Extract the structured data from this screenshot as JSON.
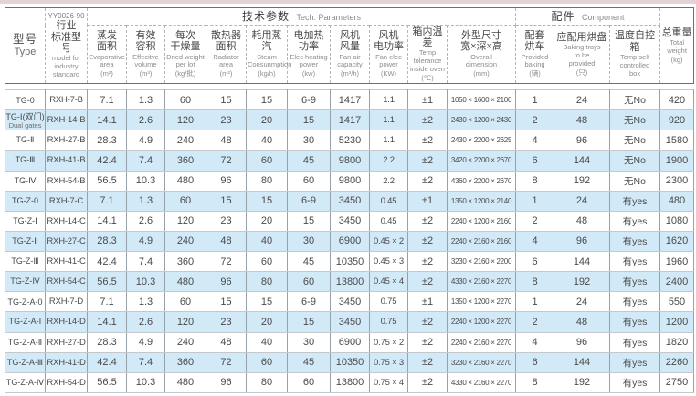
{
  "header": {
    "tech_params": {
      "zh": "技术参数",
      "en": "Tech. Parameters"
    },
    "component": {
      "zh": "配件",
      "en": "Component"
    }
  },
  "columns": [
    {
      "zh": "型号",
      "en": "Type"
    },
    {
      "std": "YY0026-90",
      "zh": "行业\n标准型号",
      "en": "model for\nindustry\nstandard"
    },
    {
      "zh": "蒸发\n面积",
      "en": "Evaporative\narea",
      "unit": "(m²)"
    },
    {
      "zh": "有效\n容积",
      "en": "Effecitve\nvolume",
      "unit": "(m³)"
    },
    {
      "zh": "每次\n干燥量",
      "en": "Dried weight\nper lot",
      "unit": "(kg/批)"
    },
    {
      "zh": "散热器\n面积",
      "en": "Radiator\narea",
      "unit": "(m²)"
    },
    {
      "zh": "耗用蒸汽",
      "en": "Steam\nConsunmption",
      "unit": "(kg/h)"
    },
    {
      "zh": "电加热\n功率",
      "en": "Elec heating\npower",
      "unit": "(kw)"
    },
    {
      "zh": "风机\n风量",
      "en": "Fan air\ncapacity",
      "unit": "(m³/h)"
    },
    {
      "zh": "风机\n电功率",
      "en": "Fan elec\npower",
      "unit": "(KW)"
    },
    {
      "zh": "箱内温差",
      "en": "Temp\ntolerance\ninside oven",
      "unit": "(℃)"
    },
    {
      "zh": "外型尺寸\n宽×深×高",
      "en": "Overall\ndimension",
      "unit": "(mm)"
    },
    {
      "zh": "配套\n烘车",
      "en": "Provided\nbaking",
      "unit": "(辆)"
    },
    {
      "zh": "应配用烘盘",
      "en": "Baking trays\nto be\nprovided",
      "unit": "(只)"
    },
    {
      "zh": "温度自控箱",
      "en": "Temp self\ncontrolled\nbox",
      "unit": ""
    },
    {
      "zh": "总重量",
      "en": "Total\nweight",
      "unit": "(kg)"
    }
  ],
  "rows": [
    [
      "TG-0",
      "RXH-7-B",
      "7.1",
      "1.3",
      "60",
      "15",
      "15",
      "6-9",
      "1417",
      "1.1",
      "±1",
      "1050 × 1600 × 2100",
      "1",
      "24",
      "无No",
      "420"
    ],
    [
      "TG-Ⅰ(双门)\nDual gates",
      "RXH-14-B",
      "14.1",
      "2.6",
      "120",
      "23",
      "20",
      "15",
      "1417",
      "1.1",
      "±2",
      "2430 × 1200 × 2430",
      "2",
      "48",
      "无No",
      "920"
    ],
    [
      "TG-Ⅱ",
      "RXH-27-B",
      "28.3",
      "4.9",
      "240",
      "48",
      "40",
      "30",
      "5230",
      "1.1",
      "±2",
      "2430 × 2200 × 2625",
      "4",
      "96",
      "无No",
      "1580"
    ],
    [
      "TG-Ⅲ",
      "RXH-41-B",
      "42.4",
      "7.4",
      "360",
      "72",
      "60",
      "45",
      "9800",
      "2.2",
      "±2",
      "3420 × 2200 × 2670",
      "6",
      "144",
      "无No",
      "1900"
    ],
    [
      "TG-Ⅳ",
      "RXH-54-B",
      "56.5",
      "10.3",
      "480",
      "96",
      "80",
      "60",
      "9800",
      "2.2",
      "±2",
      "4360 × 2200 × 2670",
      "8",
      "192",
      "无No",
      "2300"
    ],
    [
      "TG-Z-0",
      "RXH-7-C",
      "7.1",
      "1.3",
      "60",
      "15",
      "15",
      "6-9",
      "3450",
      "0.45",
      "±1",
      "1350 × 1200 × 2140",
      "1",
      "24",
      "有yes",
      "480"
    ],
    [
      "TG-Z-Ⅰ",
      "RXH-14-C",
      "14.1",
      "2.6",
      "120",
      "23",
      "20",
      "15",
      "3450",
      "0.45",
      "±2",
      "2240 × 1200 × 2160",
      "2",
      "48",
      "有yes",
      "1080"
    ],
    [
      "TG-Z-Ⅱ",
      "RXH-27-C",
      "28.3",
      "4.9",
      "240",
      "48",
      "40",
      "30",
      "6900",
      "0.45 × 2",
      "±2",
      "2240 × 2160 × 2160",
      "4",
      "96",
      "有yes",
      "1620"
    ],
    [
      "TG-Z-Ⅲ",
      "RXH-41-C",
      "42.4",
      "7.4",
      "360",
      "72",
      "60",
      "45",
      "10350",
      "0.45 × 3",
      "±2",
      "3230 × 2160 × 2200",
      "6",
      "144",
      "有yes",
      "1960"
    ],
    [
      "TG-Z-Ⅳ",
      "RXH-54-C",
      "56.5",
      "10.3",
      "480",
      "96",
      "80",
      "60",
      "13800",
      "0.45 × 4",
      "±2",
      "4330 × 2160 × 2270",
      "8",
      "192",
      "有yes",
      "2400"
    ],
    [
      "TG-Z-A-0",
      "RXH-7-D",
      "7.1",
      "1.3",
      "60",
      "15",
      "15",
      "6-9",
      "3450",
      "0.75",
      "±1",
      "1350 × 1200 × 2270",
      "1",
      "24",
      "有yes",
      "550"
    ],
    [
      "TG-Z-A-Ⅰ",
      "RXH-14-D",
      "14.1",
      "2.6",
      "120",
      "23",
      "20",
      "15",
      "3450",
      "0.75",
      "±2",
      "2240 × 1200 × 2270",
      "2",
      "48",
      "有yes",
      "1200"
    ],
    [
      "TG-Z-A-Ⅱ",
      "RXH-27-D",
      "28.3",
      "4.9",
      "240",
      "48",
      "40",
      "30",
      "6900",
      "0.75 × 2",
      "±2",
      "2240 × 2160 × 2270",
      "4",
      "96",
      "有yes",
      "1820"
    ],
    [
      "TG-Z-A-Ⅲ",
      "RXH-41-D",
      "42.4",
      "7.4",
      "360",
      "72",
      "60",
      "45",
      "10350",
      "0.75 × 3",
      "±2",
      "3230 × 2160 × 2270",
      "6",
      "144",
      "有yes",
      "2260"
    ],
    [
      "TG-Z-A-Ⅳ",
      "RXH-54-D",
      "56.5",
      "10.3",
      "480",
      "96",
      "80",
      "60",
      "13800",
      "0.75 × 4",
      "±2",
      "4330 × 2160 × 2270",
      "8",
      "192",
      "有yes",
      "2750"
    ]
  ]
}
